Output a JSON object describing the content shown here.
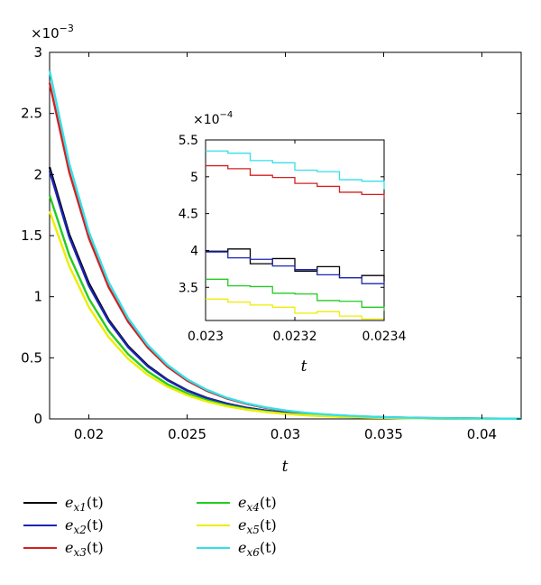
{
  "chart_data": [
    {
      "type": "line",
      "xlabel": "t",
      "ylabel": "",
      "xlim": [
        0.018,
        0.042
      ],
      "ylim": [
        0,
        0.003
      ],
      "y_exponent_label": "×10",
      "y_exponent_power": "−3",
      "x_ticks": [
        0.02,
        0.025,
        0.03,
        0.035,
        0.04
      ],
      "x_tick_labels": [
        "0.02",
        "0.025",
        "0.03",
        "0.035",
        "0.04"
      ],
      "y_ticks": [
        0,
        0.0005,
        0.001,
        0.0015,
        0.002,
        0.0025,
        0.003
      ],
      "y_tick_labels": [
        "0",
        "0.5",
        "1",
        "1.5",
        "2",
        "2.5",
        "3"
      ],
      "grid": false,
      "x": [
        0.018,
        0.019,
        0.02,
        0.021,
        0.022,
        0.023,
        0.024,
        0.025,
        0.026,
        0.027,
        0.028,
        0.029,
        0.03,
        0.031,
        0.032,
        0.033,
        0.034,
        0.035,
        0.036,
        0.037,
        0.038,
        0.039,
        0.04,
        0.041,
        0.042
      ],
      "series": [
        {
          "name": "e_x1(t)",
          "color": "#000000",
          "values": [
            0.00206,
            0.00151,
            0.00111,
            0.000812,
            0.000595,
            0.000436,
            0.00032,
            0.000234,
            0.000172,
            0.000126,
            9.22e-05,
            6.76e-05,
            4.95e-05,
            3.63e-05,
            2.66e-05,
            1.95e-05,
            1.43e-05,
            1.05e-05,
            7.7e-06,
            5.6e-06,
            4.1e-06,
            3e-06,
            2.2e-06,
            1.6e-06,
            1.2e-06
          ]
        },
        {
          "name": "e_x2(t)",
          "color": "#1c24b4",
          "values": [
            0.00203,
            0.00149,
            0.00109,
            0.000801,
            0.000587,
            0.00043,
            0.000316,
            0.000231,
            0.00017,
            0.000124,
            9.1e-05,
            6.67e-05,
            4.89e-05,
            3.58e-05,
            2.63e-05,
            1.93e-05,
            1.41e-05,
            1.03e-05,
            7.6e-06,
            5.6e-06,
            4.1e-06,
            3e-06,
            2.2e-06,
            1.6e-06,
            1.2e-06
          ]
        },
        {
          "name": "e_x3(t)",
          "color": "#d42020",
          "values": [
            0.00275,
            0.00202,
            0.00148,
            0.00108,
            0.000795,
            0.000583,
            0.000427,
            0.000313,
            0.00023,
            0.000168,
            0.000123,
            9.03e-05,
            6.62e-05,
            4.85e-05,
            3.56e-05,
            2.61e-05,
            1.91e-05,
            1.4e-05,
            1.03e-05,
            7.5e-06,
            5.5e-06,
            4e-06,
            3e-06,
            2.2e-06,
            1.6e-06
          ]
        },
        {
          "name": "e_x4(t)",
          "color": "#22cc22",
          "values": [
            0.00183,
            0.00134,
            0.000984,
            0.000722,
            0.000529,
            0.000388,
            0.000284,
            0.000209,
            0.000153,
            0.000112,
            8.22e-05,
            6.03e-05,
            4.42e-05,
            3.24e-05,
            2.37e-05,
            1.74e-05,
            1.28e-05,
            9.4e-06,
            6.9e-06,
            5e-06,
            3.7e-06,
            2.7e-06,
            2e-06,
            1.5e-06,
            1.1e-06
          ]
        },
        {
          "name": "e_x5(t)",
          "color": "#eded00",
          "values": [
            0.0017,
            0.00125,
            0.000914,
            0.00067,
            0.000491,
            0.00036,
            0.000264,
            0.000194,
            0.000142,
            0.000104,
            7.63e-05,
            5.59e-05,
            4.1e-05,
            3.01e-05,
            2.2e-05,
            1.62e-05,
            1.19e-05,
            8.7e-06,
            6.4e-06,
            4.7e-06,
            3.4e-06,
            2.5e-06,
            1.8e-06,
            1.4e-06,
            1e-06
          ]
        },
        {
          "name": "e_x6(t)",
          "color": "#33e0e8",
          "values": [
            0.00285,
            0.00209,
            0.00153,
            0.00112,
            0.000823,
            0.000603,
            0.000442,
            0.000324,
            0.000238,
            0.000174,
            0.000128,
            9.35e-05,
            6.86e-05,
            5.03e-05,
            3.68e-05,
            2.7e-05,
            1.98e-05,
            1.45e-05,
            1.06e-05,
            7.8e-06,
            5.7e-06,
            4.2e-06,
            3.1e-06,
            2.3e-06,
            1.6e-06
          ]
        }
      ]
    },
    {
      "type": "line",
      "role": "inset",
      "xlabel": "t",
      "ylabel": "",
      "xlim": [
        0.023,
        0.0234
      ],
      "ylim": [
        0.000305,
        0.00055
      ],
      "y_exponent_label": "×10",
      "y_exponent_power": "−4",
      "x_ticks": [
        0.023,
        0.0232,
        0.0234
      ],
      "x_tick_labels": [
        "0.023",
        "0.0232",
        "0.0234"
      ],
      "y_ticks": [
        0.00035,
        0.0004,
        0.00045,
        0.0005,
        0.00055
      ],
      "y_tick_labels": [
        "3.5",
        "4",
        "4.5",
        "5",
        "5.5"
      ],
      "grid": false,
      "x": [
        0.023,
        0.02305,
        0.0231,
        0.02315,
        0.0232,
        0.02325,
        0.0233,
        0.02335,
        0.0234
      ],
      "series": [
        {
          "name": "e_x1(t)",
          "color": "#000000",
          "values": [
            0.000399,
            0.000402,
            0.000382,
            0.000389,
            0.000372,
            0.000378,
            0.000363,
            0.000366,
            0.000358
          ]
        },
        {
          "name": "e_x2(t)",
          "color": "#1c24b4",
          "values": [
            0.000398,
            0.00039,
            0.000388,
            0.000379,
            0.000374,
            0.000367,
            0.000363,
            0.000355,
            0.000352
          ]
        },
        {
          "name": "e_x3(t)",
          "color": "#d42020",
          "values": [
            0.000515,
            0.000511,
            0.000502,
            0.000499,
            0.000491,
            0.000487,
            0.000479,
            0.000476,
            0.00047
          ]
        },
        {
          "name": "e_x4(t)",
          "color": "#22cc22",
          "values": [
            0.000361,
            0.000352,
            0.000351,
            0.000342,
            0.000341,
            0.000332,
            0.000331,
            0.000323,
            0.000318
          ]
        },
        {
          "name": "e_x5(t)",
          "color": "#eded00",
          "values": [
            0.000334,
            0.00033,
            0.000326,
            0.000323,
            0.000315,
            0.000317,
            0.000311,
            0.000307,
            0.000305
          ]
        },
        {
          "name": "e_x6(t)",
          "color": "#33e0e8",
          "values": [
            0.000535,
            0.000532,
            0.000522,
            0.000519,
            0.000509,
            0.000507,
            0.000496,
            0.000494,
            0.000483
          ]
        }
      ]
    }
  ],
  "legend": {
    "placement": "bottom",
    "entries": [
      {
        "base": "e",
        "sub": "x1",
        "arg": "(t)",
        "color": "#000000"
      },
      {
        "base": "e",
        "sub": "x2",
        "arg": "(t)",
        "color": "#1c24b4"
      },
      {
        "base": "e",
        "sub": "x3",
        "arg": "(t)",
        "color": "#d42020"
      },
      {
        "base": "e",
        "sub": "x4",
        "arg": "(t)",
        "color": "#22cc22"
      },
      {
        "base": "e",
        "sub": "x5",
        "arg": "(t)",
        "color": "#eded00"
      },
      {
        "base": "e",
        "sub": "x6",
        "arg": "(t)",
        "color": "#33e0e8"
      }
    ]
  }
}
